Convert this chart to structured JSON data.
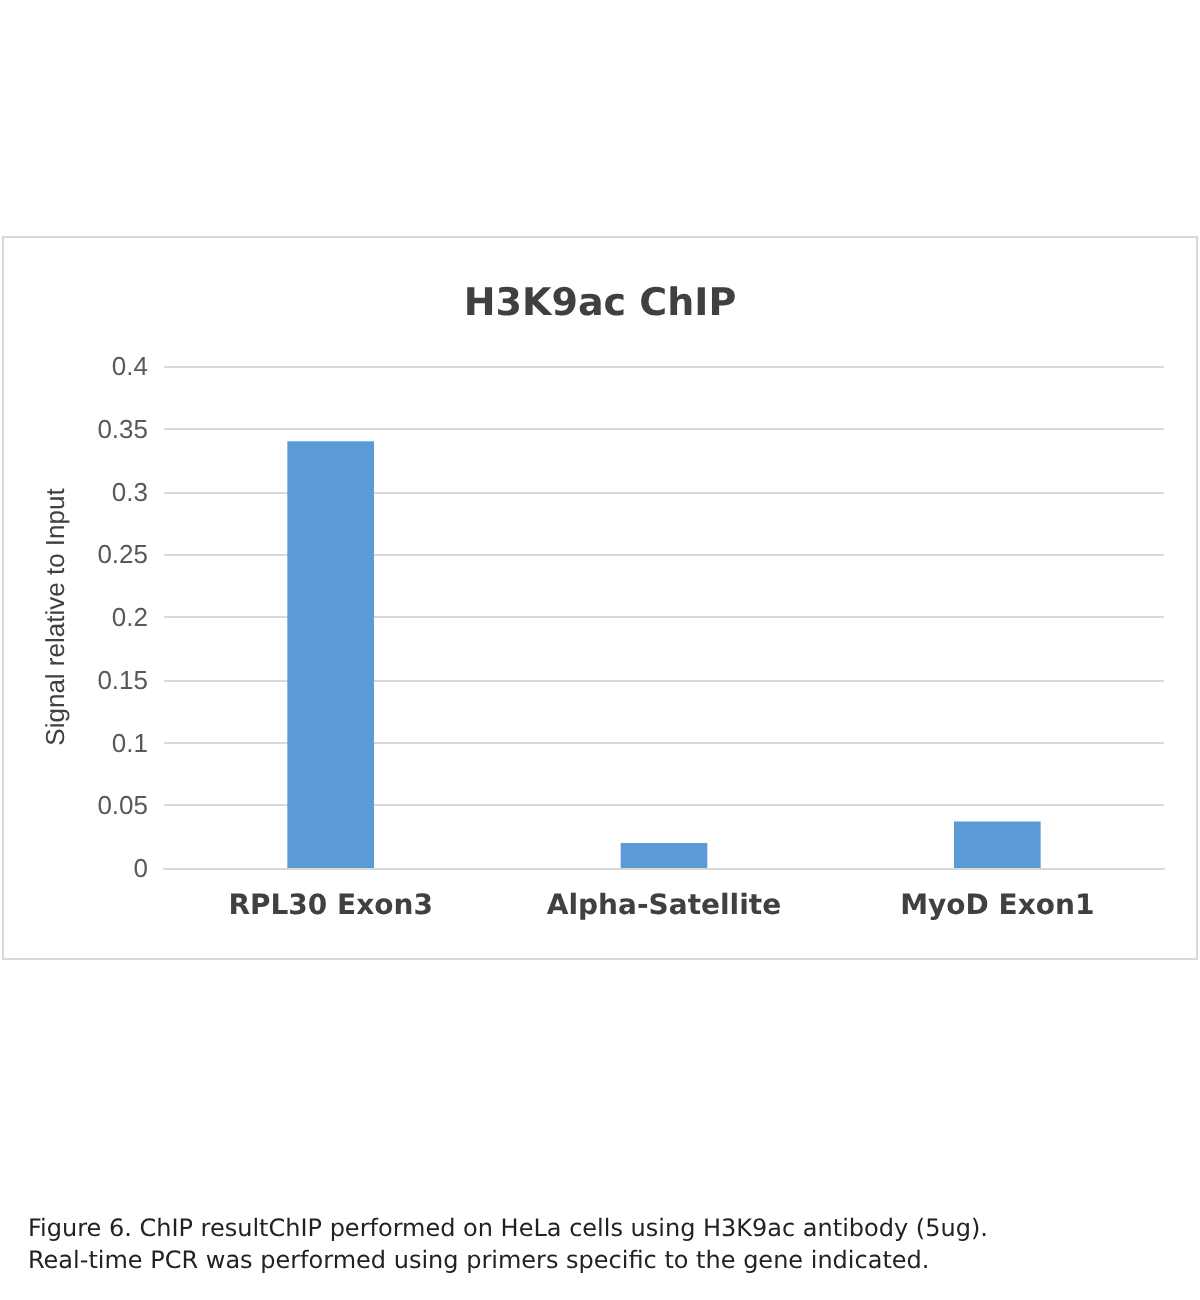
{
  "chart_data": {
    "type": "bar",
    "title": "H3K9ac ChIP",
    "ylabel": "Signal relative to Input",
    "categories": [
      "RPL30 Exon3",
      "Alpha-Satellite",
      "MyoD Exon1"
    ],
    "values": [
      0.34,
      0.02,
      0.037
    ],
    "color": "#5b9bd5",
    "ylim": [
      0,
      0.4
    ],
    "yticks": [
      0,
      0.05,
      0.1,
      0.15,
      0.2,
      0.25,
      0.3,
      0.35,
      0.4
    ],
    "grid": "y",
    "annotations": [
      "Figure 6. ChIP resultChIP performed on HeLa cells using H3K9ac antibody (5ug).\nReal-time PCR was performed using primers specific to the gene indicated."
    ]
  }
}
